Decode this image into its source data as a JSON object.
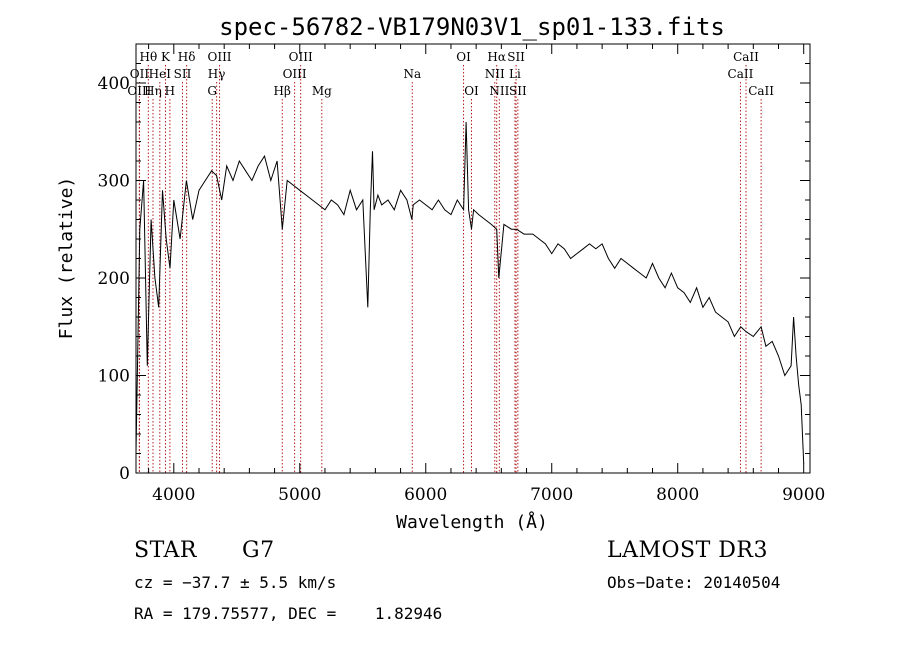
{
  "chart_data": {
    "type": "line",
    "title": "spec-56782-VB179N03V1_sp01-133.fits",
    "xlabel": "Wavelength (Å)",
    "ylabel": "Flux (relative)",
    "xlim": [
      3700,
      9050
    ],
    "ylim": [
      0,
      440
    ],
    "xticks": [
      4000,
      5000,
      6000,
      7000,
      8000,
      9000
    ],
    "yticks": [
      0,
      100,
      200,
      300,
      400
    ],
    "grid": false,
    "series": [
      {
        "name": "spectrum",
        "x": [
          3700,
          3730,
          3760,
          3790,
          3820,
          3850,
          3880,
          3910,
          3940,
          3970,
          4000,
          4050,
          4100,
          4150,
          4200,
          4250,
          4300,
          4340,
          4380,
          4420,
          4470,
          4520,
          4570,
          4620,
          4670,
          4720,
          4770,
          4820,
          4861,
          4900,
          4950,
          5000,
          5050,
          5100,
          5150,
          5200,
          5250,
          5300,
          5350,
          5400,
          5450,
          5500,
          5540,
          5560,
          5577,
          5590,
          5620,
          5650,
          5700,
          5750,
          5800,
          5850,
          5890,
          5900,
          5950,
          6000,
          6050,
          6100,
          6150,
          6200,
          6250,
          6300,
          6320,
          6340,
          6363,
          6380,
          6420,
          6470,
          6520,
          6563,
          6580,
          6620,
          6680,
          6720,
          6780,
          6850,
          6900,
          6950,
          7000,
          7050,
          7100,
          7150,
          7200,
          7250,
          7300,
          7350,
          7400,
          7450,
          7500,
          7550,
          7600,
          7650,
          7700,
          7750,
          7800,
          7850,
          7900,
          7950,
          8000,
          8050,
          8100,
          8150,
          8200,
          8250,
          8300,
          8350,
          8400,
          8450,
          8500,
          8542,
          8600,
          8662,
          8700,
          8750,
          8800,
          8850,
          8900,
          8920,
          8940,
          8960,
          8980,
          9000
        ],
        "values": [
          20,
          250,
          300,
          110,
          260,
          200,
          170,
          290,
          240,
          210,
          280,
          240,
          300,
          260,
          290,
          300,
          310,
          305,
          280,
          315,
          300,
          320,
          310,
          300,
          315,
          325,
          300,
          320,
          250,
          300,
          295,
          290,
          285,
          280,
          275,
          270,
          280,
          275,
          265,
          290,
          270,
          280,
          170,
          270,
          330,
          270,
          285,
          275,
          280,
          270,
          290,
          280,
          260,
          275,
          280,
          275,
          270,
          280,
          270,
          265,
          280,
          270,
          360,
          270,
          250,
          270,
          265,
          260,
          255,
          250,
          200,
          255,
          250,
          250,
          245,
          245,
          240,
          235,
          225,
          235,
          230,
          220,
          225,
          230,
          235,
          230,
          235,
          220,
          210,
          220,
          215,
          210,
          205,
          200,
          215,
          200,
          190,
          205,
          190,
          185,
          175,
          190,
          170,
          180,
          165,
          160,
          155,
          140,
          150,
          145,
          140,
          150,
          130,
          135,
          120,
          100,
          110,
          160,
          120,
          90,
          70,
          10
        ]
      }
    ],
    "lines": [
      {
        "name": "Hθ",
        "x": 3798,
        "row": 1
      },
      {
        "name": "OII",
        "x": 3727,
        "row": 2
      },
      {
        "name": "OIII",
        "x": 3727,
        "row": 3
      },
      {
        "name": "Hη",
        "x": 3835,
        "row": 3
      },
      {
        "name": "K",
        "x": 3934,
        "row": 1
      },
      {
        "name": "HeI",
        "x": 3889,
        "row": 2
      },
      {
        "name": "SII",
        "x": 4069,
        "row": 2
      },
      {
        "name": "H",
        "x": 3969,
        "row": 3
      },
      {
        "name": "Hδ",
        "x": 4102,
        "row": 1
      },
      {
        "name": "OIII",
        "x": 4363,
        "row": 1
      },
      {
        "name": "Hγ",
        "x": 4340,
        "row": 2
      },
      {
        "name": "G",
        "x": 4305,
        "row": 3
      },
      {
        "name": "OIII",
        "x": 5007,
        "row": 1
      },
      {
        "name": "OIII",
        "x": 4959,
        "row": 2
      },
      {
        "name": "Hβ",
        "x": 4861,
        "row": 3
      },
      {
        "name": "Mg",
        "x": 5175,
        "row": 3
      },
      {
        "name": "Na",
        "x": 5893,
        "row": 2
      },
      {
        "name": "OI",
        "x": 6300,
        "row": 1
      },
      {
        "name": "OI",
        "x": 6363,
        "row": 3
      },
      {
        "name": "Hα",
        "x": 6563,
        "row": 1
      },
      {
        "name": "SII",
        "x": 6717,
        "row": 1
      },
      {
        "name": "NII",
        "x": 6548,
        "row": 2
      },
      {
        "name": "Li",
        "x": 6708,
        "row": 2
      },
      {
        "name": "NII",
        "x": 6584,
        "row": 3
      },
      {
        "name": "SII",
        "x": 6731,
        "row": 3
      },
      {
        "name": "CaII",
        "x": 8542,
        "row": 1
      },
      {
        "name": "CaII",
        "x": 8498,
        "row": 2
      },
      {
        "name": "CaII",
        "x": 8662,
        "row": 3
      }
    ],
    "line_color": "#b22222",
    "spectrum_color": "#000000"
  },
  "info": {
    "class": "STAR",
    "subclass": "G7",
    "survey": "LAMOST DR3",
    "cz": "cz = −37.7 ± 5.5 km/s",
    "obs_date": "Obs−Date: 20140504",
    "coords": "RA = 179.75577, DEC =    1.82946"
  }
}
